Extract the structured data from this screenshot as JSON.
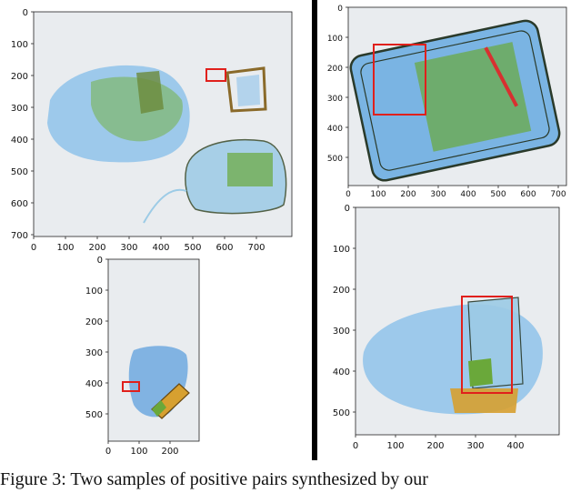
{
  "figure": {
    "caption": "Figure 3: Two samples of positive pairs synthesized by our"
  },
  "panels": [
    {
      "id": "top-left",
      "x_ticks": [
        "0",
        "100",
        "200",
        "300",
        "400",
        "500",
        "600",
        "700"
      ],
      "y_ticks": [
        "0",
        "100",
        "200",
        "300",
        "400",
        "500",
        "600",
        "700"
      ]
    },
    {
      "id": "top-right",
      "x_ticks": [
        "0",
        "100",
        "200",
        "300",
        "400",
        "500",
        "600",
        "700"
      ],
      "y_ticks": [
        "0",
        "100",
        "200",
        "300",
        "400",
        "500"
      ]
    },
    {
      "id": "bottom-left",
      "x_ticks": [
        "0",
        "100",
        "200"
      ],
      "y_ticks": [
        "0",
        "100",
        "200",
        "300",
        "400",
        "500"
      ]
    },
    {
      "id": "bottom-right",
      "x_ticks": [
        "0",
        "100",
        "200",
        "300",
        "400"
      ],
      "y_ticks": [
        "0",
        "100",
        "200",
        "300",
        "400",
        "500"
      ]
    }
  ],
  "colors": {
    "bbox": "#e0201c",
    "scan_bg": "#e9ecef",
    "xray_blue": "#5fa3de",
    "xray_green": "#6aa83a",
    "xray_orange": "#d7a030"
  }
}
